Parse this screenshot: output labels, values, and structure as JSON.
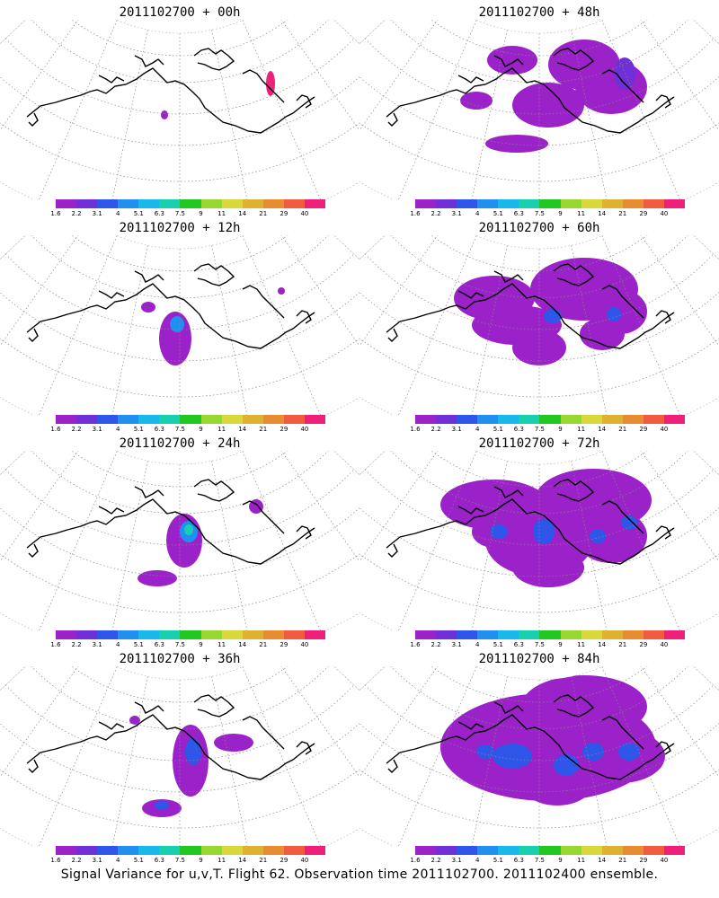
{
  "colorbar": {
    "labels": [
      "1.6",
      "2.2",
      "3.1",
      "4",
      "5.1",
      "6.3",
      "7.5",
      "9",
      "11",
      "14",
      "21",
      "29",
      "40"
    ],
    "colors": [
      "#9b22c8",
      "#7030d8",
      "#2e56e8",
      "#1f90f0",
      "#18b8e8",
      "#18d0b0",
      "#20c820",
      "#96d830",
      "#d8d838",
      "#e0b030",
      "#e88c30",
      "#f05c40",
      "#f0207a"
    ]
  },
  "panels": [
    {
      "title": "2011102700 + 00h",
      "blobs": [
        {
          "x": 183,
          "y": 106,
          "rx": 4,
          "ry": 5,
          "level": 0
        },
        {
          "x": 301,
          "y": 71,
          "rx": 5,
          "ry": 14,
          "level": 12
        }
      ]
    },
    {
      "title": "2011102700 + 48h",
      "blobs": [
        {
          "x": 170,
          "y": 45,
          "rx": 28,
          "ry": 16,
          "level": 0
        },
        {
          "x": 250,
          "y": 50,
          "rx": 40,
          "ry": 28,
          "level": 0
        },
        {
          "x": 280,
          "y": 75,
          "rx": 40,
          "ry": 30,
          "level": 0
        },
        {
          "x": 210,
          "y": 95,
          "rx": 40,
          "ry": 25,
          "level": 0
        },
        {
          "x": 175,
          "y": 138,
          "rx": 35,
          "ry": 10,
          "level": 0
        },
        {
          "x": 130,
          "y": 90,
          "rx": 18,
          "ry": 10,
          "level": 0
        },
        {
          "x": 295,
          "y": 60,
          "rx": 12,
          "ry": 18,
          "level": 1
        }
      ]
    },
    {
      "title": "2011102700 + 12h",
      "blobs": [
        {
          "x": 195,
          "y": 115,
          "rx": 18,
          "ry": 30,
          "level": 0
        },
        {
          "x": 197,
          "y": 99,
          "rx": 8,
          "ry": 9,
          "level": 3
        },
        {
          "x": 165,
          "y": 80,
          "rx": 8,
          "ry": 6,
          "level": 0
        },
        {
          "x": 313,
          "y": 62,
          "rx": 4,
          "ry": 4,
          "level": 0
        }
      ]
    },
    {
      "title": "2011102700 + 60h",
      "blobs": [
        {
          "x": 150,
          "y": 70,
          "rx": 45,
          "ry": 25,
          "level": 0
        },
        {
          "x": 250,
          "y": 60,
          "rx": 60,
          "ry": 35,
          "level": 0
        },
        {
          "x": 290,
          "y": 85,
          "rx": 30,
          "ry": 25,
          "level": 0
        },
        {
          "x": 175,
          "y": 100,
          "rx": 50,
          "ry": 22,
          "level": 0
        },
        {
          "x": 200,
          "y": 125,
          "rx": 30,
          "ry": 20,
          "level": 0
        },
        {
          "x": 270,
          "y": 110,
          "rx": 25,
          "ry": 18,
          "level": 0
        },
        {
          "x": 215,
          "y": 90,
          "rx": 10,
          "ry": 8,
          "level": 2
        },
        {
          "x": 283,
          "y": 88,
          "rx": 8,
          "ry": 8,
          "level": 2
        }
      ]
    },
    {
      "title": "2011102700 + 24h",
      "blobs": [
        {
          "x": 205,
          "y": 100,
          "rx": 20,
          "ry": 30,
          "level": 0
        },
        {
          "x": 175,
          "y": 142,
          "rx": 22,
          "ry": 9,
          "level": 0
        },
        {
          "x": 210,
          "y": 90,
          "rx": 10,
          "ry": 12,
          "level": 3
        },
        {
          "x": 210,
          "y": 88,
          "rx": 5,
          "ry": 6,
          "level": 5
        },
        {
          "x": 285,
          "y": 62,
          "rx": 8,
          "ry": 8,
          "level": 0
        }
      ]
    },
    {
      "title": "2011102700 + 72h",
      "blobs": [
        {
          "x": 150,
          "y": 60,
          "rx": 60,
          "ry": 28,
          "level": 0
        },
        {
          "x": 260,
          "y": 55,
          "rx": 65,
          "ry": 35,
          "level": 0
        },
        {
          "x": 200,
          "y": 100,
          "rx": 60,
          "ry": 40,
          "level": 0
        },
        {
          "x": 280,
          "y": 95,
          "rx": 40,
          "ry": 30,
          "level": 0
        },
        {
          "x": 210,
          "y": 130,
          "rx": 40,
          "ry": 22,
          "level": 0
        },
        {
          "x": 150,
          "y": 90,
          "rx": 25,
          "ry": 18,
          "level": 0
        },
        {
          "x": 205,
          "y": 90,
          "rx": 12,
          "ry": 14,
          "level": 2
        },
        {
          "x": 155,
          "y": 90,
          "rx": 10,
          "ry": 8,
          "level": 2
        },
        {
          "x": 265,
          "y": 95,
          "rx": 9,
          "ry": 8,
          "level": 2
        },
        {
          "x": 300,
          "y": 80,
          "rx": 9,
          "ry": 8,
          "level": 2
        }
      ]
    },
    {
      "title": "2011102700 + 36h",
      "blobs": [
        {
          "x": 212,
          "y": 105,
          "rx": 20,
          "ry": 40,
          "level": 0
        },
        {
          "x": 180,
          "y": 158,
          "rx": 22,
          "ry": 10,
          "level": 0
        },
        {
          "x": 260,
          "y": 85,
          "rx": 22,
          "ry": 10,
          "level": 0
        },
        {
          "x": 215,
          "y": 95,
          "rx": 9,
          "ry": 15,
          "level": 2
        },
        {
          "x": 180,
          "y": 155,
          "rx": 8,
          "ry": 5,
          "level": 2
        },
        {
          "x": 150,
          "y": 60,
          "rx": 6,
          "ry": 5,
          "level": 0
        }
      ]
    },
    {
      "title": "2011102700 + 84h",
      "blobs": [
        {
          "x": 210,
          "y": 90,
          "rx": 120,
          "ry": 60,
          "level": 0
        },
        {
          "x": 250,
          "y": 45,
          "rx": 70,
          "ry": 35,
          "level": 0
        },
        {
          "x": 150,
          "y": 90,
          "rx": 60,
          "ry": 35,
          "level": 0
        },
        {
          "x": 290,
          "y": 100,
          "rx": 50,
          "ry": 30,
          "level": 0
        },
        {
          "x": 220,
          "y": 130,
          "rx": 40,
          "ry": 25,
          "level": 0
        },
        {
          "x": 170,
          "y": 100,
          "rx": 22,
          "ry": 14,
          "level": 2
        },
        {
          "x": 230,
          "y": 110,
          "rx": 14,
          "ry": 12,
          "level": 2
        },
        {
          "x": 260,
          "y": 95,
          "rx": 12,
          "ry": 10,
          "level": 2
        },
        {
          "x": 300,
          "y": 95,
          "rx": 12,
          "ry": 10,
          "level": 2
        },
        {
          "x": 140,
          "y": 95,
          "rx": 10,
          "ry": 8,
          "level": 2
        }
      ]
    }
  ],
  "footer": "Signal Variance for u,v,T. Flight 62. Observation time 2011102700. 2011102400 ensemble."
}
